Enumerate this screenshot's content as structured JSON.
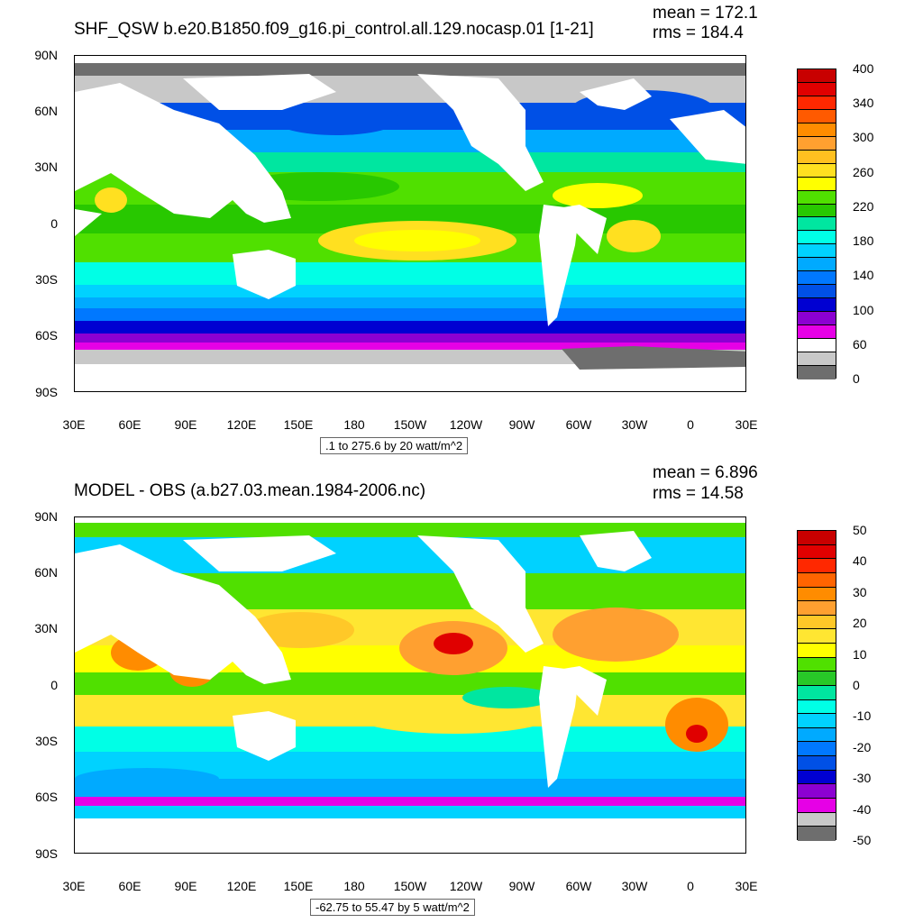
{
  "top": {
    "title": "SHF_QSW b.e20.B1850.f09_g16.pi_control.all.129.nocasp.01 [1-21]",
    "mean": "mean = 172.1",
    "rms": "rms = 184.4",
    "range": ".1 to 275.6 by 20 watt/m^2",
    "colorbar_colors": [
      "#c80000",
      "#e00000",
      "#ff2800",
      "#ff5a00",
      "#ff8c00",
      "#ffa030",
      "#ffc020",
      "#ffe020",
      "#ffff00",
      "#50e000",
      "#28c800",
      "#00e6a0",
      "#00ffe6",
      "#00d2ff",
      "#00aaff",
      "#0078ff",
      "#0050e6",
      "#0000d2",
      "#8c00d2",
      "#e600e6",
      "#ffffff",
      "#c8c8c8",
      "#6e6e6e"
    ],
    "colorbar_labels": [
      "400",
      "340",
      "300",
      "260",
      "220",
      "180",
      "140",
      "100",
      "60",
      "0"
    ]
  },
  "bottom": {
    "title": "MODEL - OBS (a.b27.03.mean.1984-2006.nc)",
    "mean": "mean = 6.896",
    "rms": "rms = 14.58",
    "range": "-62.75 to 55.47 by 5 watt/m^2",
    "colorbar_colors": [
      "#c80000",
      "#e00000",
      "#ff2800",
      "#ff6400",
      "#ff8c00",
      "#ffa030",
      "#ffc828",
      "#ffe632",
      "#ffff00",
      "#50e000",
      "#28c828",
      "#00e6a0",
      "#00ffe6",
      "#00d2ff",
      "#00aaff",
      "#0078ff",
      "#0050e6",
      "#0000d2",
      "#8c00d2",
      "#e600e6",
      "#c8c8c8",
      "#6e6e6e"
    ],
    "colorbar_labels": [
      "50",
      "40",
      "30",
      "20",
      "10",
      "0",
      "-10",
      "-20",
      "-30",
      "-40",
      "-50"
    ]
  },
  "lat_labels": [
    "90N",
    "60N",
    "30N",
    "0",
    "30S",
    "60S",
    "90S"
  ],
  "lon_labels": [
    "30E",
    "60E",
    "90E",
    "120E",
    "150E",
    "180",
    "150W",
    "120W",
    "90W",
    "60W",
    "30W",
    "0",
    "30E"
  ]
}
